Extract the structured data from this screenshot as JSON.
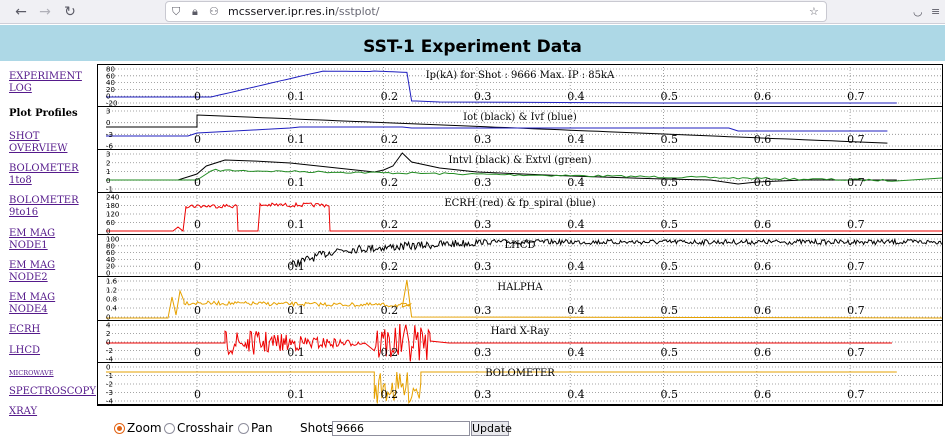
{
  "browser": {
    "url_host": "mcsserver.ipr.res.in",
    "url_path": "/sstplot/"
  },
  "page": {
    "title": "SST-1 Experiment Data"
  },
  "sidebar": {
    "items": [
      {
        "label": "EXPERIMENT LOG",
        "kind": "link"
      },
      {
        "label": "Plot Profiles",
        "kind": "heading"
      },
      {
        "label": "SHOT OVERVIEW",
        "kind": "link"
      },
      {
        "label": "BOLOMETER 1to8",
        "kind": "link"
      },
      {
        "label": "BOLOMETER 9to16",
        "kind": "link"
      },
      {
        "label": "EM MAG NODE1",
        "kind": "link"
      },
      {
        "label": "EM MAG NODE2",
        "kind": "link"
      },
      {
        "label": "EM MAG NODE4",
        "kind": "link"
      },
      {
        "label": "ECRH",
        "kind": "link"
      },
      {
        "label": "LHCD",
        "kind": "link"
      },
      {
        "label": "MICROWAVE",
        "kind": "link"
      },
      {
        "label": "SPECTROSCOPY",
        "kind": "link"
      },
      {
        "label": "XRAY",
        "kind": "link"
      }
    ]
  },
  "colors": {
    "blue": "#1f1fbf",
    "black": "#000000",
    "green": "#228b22",
    "red": "#ee0000",
    "orange": "#e6a100",
    "header": "#add8e6"
  },
  "x_ticks": [
    "0",
    "0.1",
    "0.2",
    "0.3",
    "0.4",
    "0.5",
    "0.6",
    "0.7"
  ],
  "panels": [
    {
      "id": "ip",
      "title": "Ip(kA) for Shot : 9666 Max. IP : 85kA",
      "y_ticks": [
        "80",
        "60",
        "40",
        "20",
        "0",
        "-20"
      ],
      "series": [
        {
          "name": "Ip",
          "color": "#1f1fbf",
          "shape": "ip"
        }
      ]
    },
    {
      "id": "iot",
      "title": "Iot (black) & Ivf (blue)",
      "y_ticks": [
        "3",
        "0",
        "-3",
        "-6"
      ],
      "series": [
        {
          "name": "Iot",
          "color": "#000000",
          "shape": "iot"
        },
        {
          "name": "Ivf",
          "color": "#1f1fbf",
          "shape": "ivf"
        }
      ]
    },
    {
      "id": "loop",
      "title": "Intvl (black) & Extvl (green)",
      "y_ticks": [
        "3",
        "2",
        "1",
        "0",
        "-1"
      ],
      "series": [
        {
          "name": "Intvl",
          "color": "#000000",
          "shape": "intvl"
        },
        {
          "name": "Extvl",
          "color": "#228b22",
          "shape": "extvl"
        }
      ]
    },
    {
      "id": "ecrh",
      "title": "ECRH (red) & fp_spiral (blue)",
      "y_ticks": [
        "240",
        "180",
        "120",
        "60",
        "0"
      ],
      "series": [
        {
          "name": "ECRH",
          "color": "#ee0000",
          "shape": "ecrh"
        }
      ]
    },
    {
      "id": "lhcd",
      "title": "LHCD",
      "y_ticks": [
        "100",
        "80",
        "60",
        "40",
        "20",
        "0"
      ],
      "series": [
        {
          "name": "LHCD",
          "color": "#000000",
          "shape": "lhcd"
        }
      ]
    },
    {
      "id": "halpha",
      "title": "HALPHA",
      "y_ticks": [
        "1.6",
        "1.2",
        "0.8",
        "0.4",
        "0"
      ],
      "series": [
        {
          "name": "HALPHA",
          "color": "#e6a100",
          "shape": "halpha"
        }
      ]
    },
    {
      "id": "hxr",
      "title": "Hard X-Ray",
      "y_ticks": [
        "4",
        "2",
        "0",
        "-2",
        "-4"
      ],
      "series": [
        {
          "name": "Hard X-Ray",
          "color": "#ee0000",
          "shape": "hxr"
        }
      ]
    },
    {
      "id": "bolo",
      "title": "BOLOMETER",
      "y_ticks": [
        "0",
        "-1",
        "-2",
        "-3",
        "-4"
      ],
      "series": [
        {
          "name": "BOLOMETER",
          "color": "#e6a100",
          "shape": "bolo"
        }
      ]
    }
  ],
  "controls": {
    "modes": [
      {
        "label": "Zoom",
        "selected": true
      },
      {
        "label": "Crosshair",
        "selected": false
      },
      {
        "label": "Pan",
        "selected": false
      }
    ],
    "shots_label": "Shots",
    "shots_value": "9666",
    "update_label": "Update"
  }
}
